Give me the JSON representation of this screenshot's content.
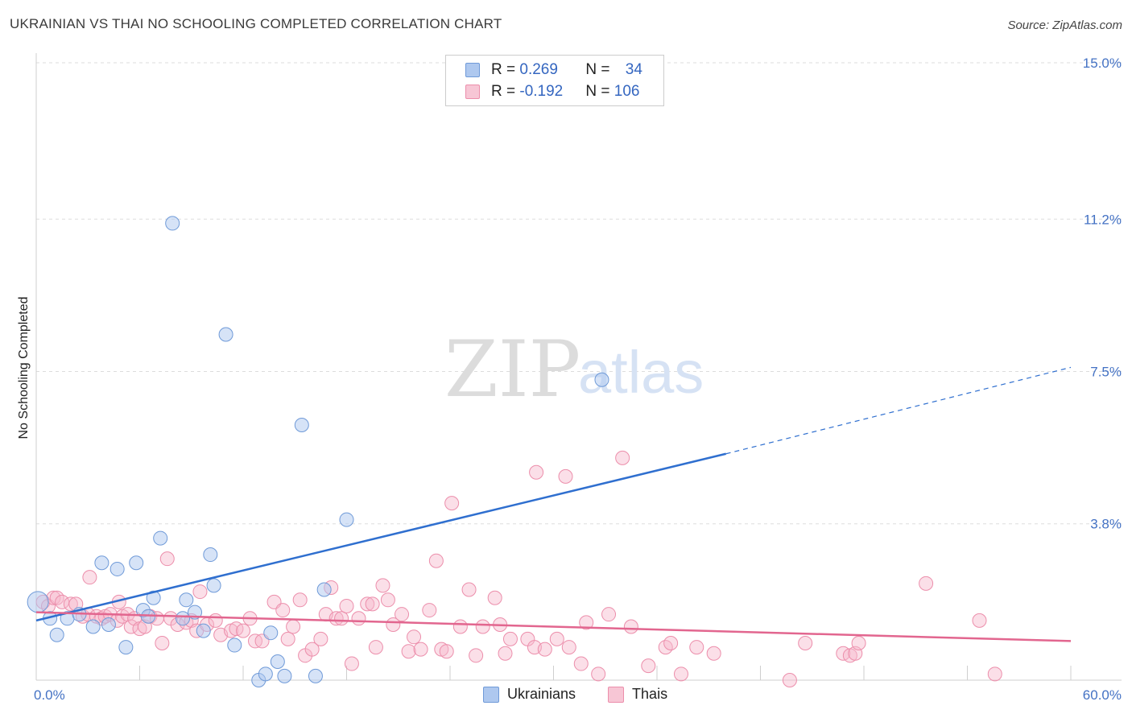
{
  "header": {
    "title": "UKRAINIAN VS THAI NO SCHOOLING COMPLETED CORRELATION CHART",
    "source": "Source: ZipAtlas.com"
  },
  "legend": {
    "rows": [
      {
        "r_label": "R = ",
        "r_value": "0.269",
        "n_label": "N = ",
        "n_value": "34"
      },
      {
        "r_label": "R = ",
        "r_value": "-0.192",
        "n_label": "N = ",
        "n_value": "106"
      }
    ]
  },
  "bottom_legend": {
    "ukrainians": "Ukrainians",
    "thais": "Thais"
  },
  "watermark": {
    "zip": "ZIP",
    "atlas": "atlas"
  },
  "colors": {
    "blue_fill": "#aec8ef",
    "blue_stroke": "#6f9ad8",
    "blue_line": "#2f6fcf",
    "pink_fill": "#f7b9cb",
    "pink_stroke": "#ec8eab",
    "pink_line": "#e2668f",
    "tick_text": "#4472c4",
    "grid": "#dddddd"
  },
  "chart_data": {
    "type": "scatter",
    "title": "UKRAINIAN VS THAI NO SCHOOLING COMPLETED CORRELATION CHART",
    "xlabel": "",
    "ylabel": "No Schooling Completed",
    "xlim": [
      0,
      60
    ],
    "ylim": [
      0,
      15
    ],
    "x_tick_labels": [
      "0.0%",
      "60.0%"
    ],
    "y_ticks": [
      3.8,
      7.5,
      11.2,
      15.0
    ],
    "y_tick_labels": [
      "3.8%",
      "7.5%",
      "11.2%",
      "15.0%"
    ],
    "series": [
      {
        "name": "Ukrainians",
        "r": 0.269,
        "n": 34,
        "trend": {
          "x0": 0,
          "y0": 1.45,
          "x1_solid": 40,
          "y1_solid": 5.5,
          "x1_dashed": 60,
          "y1_dashed": 7.6
        },
        "points": [
          [
            0.1,
            1.9
          ],
          [
            0.8,
            1.5
          ],
          [
            1.2,
            1.1
          ],
          [
            1.8,
            1.5
          ],
          [
            2.5,
            1.6
          ],
          [
            3.3,
            1.3
          ],
          [
            3.8,
            2.85
          ],
          [
            4.2,
            1.35
          ],
          [
            4.7,
            2.7
          ],
          [
            5.2,
            0.8
          ],
          [
            5.8,
            2.85
          ],
          [
            6.2,
            1.7
          ],
          [
            6.5,
            1.55
          ],
          [
            6.8,
            2.0
          ],
          [
            7.2,
            3.45
          ],
          [
            7.9,
            11.1
          ],
          [
            8.5,
            1.5
          ],
          [
            8.7,
            1.95
          ],
          [
            9.2,
            1.65
          ],
          [
            9.7,
            1.2
          ],
          [
            10.1,
            3.05
          ],
          [
            10.3,
            2.3
          ],
          [
            11.0,
            8.4
          ],
          [
            11.5,
            0.85
          ],
          [
            12.9,
            0.0
          ],
          [
            13.3,
            0.15
          ],
          [
            13.6,
            1.15
          ],
          [
            14.0,
            0.45
          ],
          [
            14.4,
            0.1
          ],
          [
            15.4,
            6.2
          ],
          [
            16.2,
            0.1
          ],
          [
            16.7,
            2.2
          ],
          [
            18.0,
            3.9
          ],
          [
            32.8,
            7.3
          ]
        ]
      },
      {
        "name": "Thais",
        "r": -0.192,
        "n": 106,
        "trend": {
          "x0": 0,
          "y0": 1.65,
          "x1": 60,
          "y1": 0.95
        },
        "points": [
          [
            0.4,
            1.9
          ],
          [
            0.7,
            1.8
          ],
          [
            1.0,
            2.0
          ],
          [
            1.2,
            2.0
          ],
          [
            1.5,
            1.9
          ],
          [
            2.0,
            1.85
          ],
          [
            2.3,
            1.85
          ],
          [
            2.7,
            1.55
          ],
          [
            3.0,
            1.6
          ],
          [
            3.1,
            2.5
          ],
          [
            3.5,
            1.55
          ],
          [
            3.8,
            1.5
          ],
          [
            4.0,
            1.55
          ],
          [
            4.3,
            1.6
          ],
          [
            4.7,
            1.45
          ],
          [
            4.8,
            1.9
          ],
          [
            5.0,
            1.55
          ],
          [
            5.3,
            1.6
          ],
          [
            5.5,
            1.3
          ],
          [
            5.7,
            1.5
          ],
          [
            6.0,
            1.25
          ],
          [
            6.3,
            1.3
          ],
          [
            6.6,
            1.55
          ],
          [
            7.0,
            1.5
          ],
          [
            7.3,
            0.9
          ],
          [
            7.6,
            2.95
          ],
          [
            7.8,
            1.5
          ],
          [
            8.2,
            1.35
          ],
          [
            8.7,
            1.4
          ],
          [
            9.0,
            1.45
          ],
          [
            9.3,
            1.2
          ],
          [
            9.5,
            2.15
          ],
          [
            9.9,
            1.35
          ],
          [
            10.4,
            1.45
          ],
          [
            10.7,
            1.1
          ],
          [
            11.3,
            1.2
          ],
          [
            11.6,
            1.25
          ],
          [
            12.0,
            1.2
          ],
          [
            12.4,
            1.5
          ],
          [
            12.7,
            0.95
          ],
          [
            13.1,
            0.95
          ],
          [
            13.8,
            1.9
          ],
          [
            14.3,
            1.7
          ],
          [
            14.6,
            1.0
          ],
          [
            14.9,
            1.3
          ],
          [
            15.3,
            1.95
          ],
          [
            15.6,
            0.6
          ],
          [
            16.0,
            0.75
          ],
          [
            16.5,
            1.0
          ],
          [
            16.8,
            1.6
          ],
          [
            17.1,
            2.25
          ],
          [
            17.4,
            1.5
          ],
          [
            17.7,
            1.5
          ],
          [
            18.0,
            1.8
          ],
          [
            18.3,
            0.4
          ],
          [
            18.7,
            1.5
          ],
          [
            19.2,
            1.85
          ],
          [
            19.5,
            1.85
          ],
          [
            19.7,
            0.8
          ],
          [
            20.1,
            2.3
          ],
          [
            20.4,
            1.95
          ],
          [
            20.7,
            1.35
          ],
          [
            21.2,
            1.6
          ],
          [
            21.6,
            0.7
          ],
          [
            21.9,
            1.05
          ],
          [
            22.3,
            0.75
          ],
          [
            22.8,
            1.7
          ],
          [
            23.2,
            2.9
          ],
          [
            23.5,
            0.75
          ],
          [
            23.8,
            0.7
          ],
          [
            24.1,
            4.3
          ],
          [
            24.6,
            1.3
          ],
          [
            25.1,
            2.2
          ],
          [
            25.5,
            0.6
          ],
          [
            25.9,
            1.3
          ],
          [
            26.6,
            2.0
          ],
          [
            26.9,
            1.35
          ],
          [
            27.2,
            0.65
          ],
          [
            27.5,
            1.0
          ],
          [
            28.5,
            1.0
          ],
          [
            28.9,
            0.8
          ],
          [
            29.0,
            5.05
          ],
          [
            29.5,
            0.75
          ],
          [
            30.2,
            1.0
          ],
          [
            30.7,
            4.95
          ],
          [
            30.9,
            0.8
          ],
          [
            31.6,
            0.4
          ],
          [
            31.9,
            1.4
          ],
          [
            32.6,
            0.15
          ],
          [
            33.2,
            1.6
          ],
          [
            34.0,
            5.4
          ],
          [
            34.5,
            1.3
          ],
          [
            35.5,
            0.35
          ],
          [
            36.5,
            0.8
          ],
          [
            36.8,
            0.9
          ],
          [
            37.4,
            0.15
          ],
          [
            38.3,
            0.8
          ],
          [
            39.3,
            0.65
          ],
          [
            44.6,
            0.9
          ],
          [
            46.8,
            0.65
          ],
          [
            47.2,
            0.6
          ],
          [
            47.5,
            0.65
          ],
          [
            47.7,
            0.9
          ],
          [
            51.6,
            2.35
          ],
          [
            54.7,
            1.45
          ],
          [
            55.6,
            0.15
          ],
          [
            43.7,
            0.0
          ]
        ]
      }
    ]
  }
}
